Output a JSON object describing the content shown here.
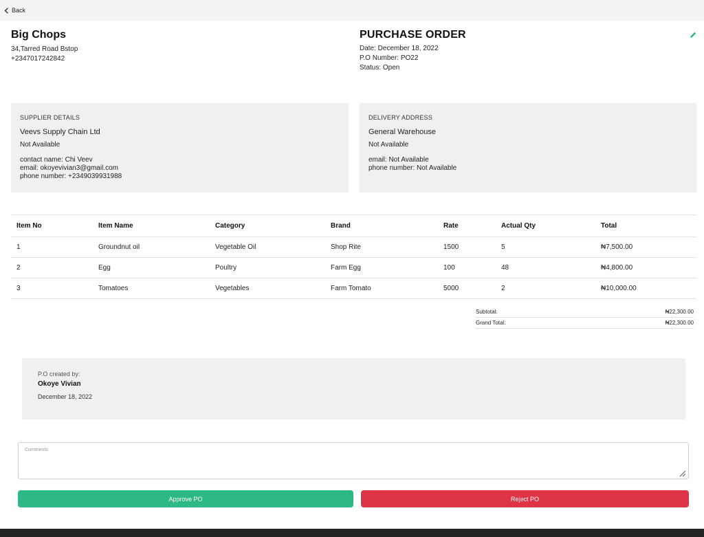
{
  "nav": {
    "back_label": "Back"
  },
  "company": {
    "name": "Big Chops",
    "address": "34,Tarred Road Bstop",
    "phone": "+2347017242842"
  },
  "po": {
    "title": "PURCHASE ORDER",
    "date": "Date: December 18, 2022",
    "number": "P.O Number: PO22",
    "status": "Status: Open"
  },
  "supplier": {
    "heading": "SUPPLIER DETAILS",
    "name": "Veevs Supply Chain Ltd",
    "address": "Not Available",
    "contact_name": "contact name: Chi Veev",
    "email": "email: okoyevivian3@gmail.com",
    "phone": "phone number: +2349039931988"
  },
  "delivery": {
    "heading": "DELIVERY ADDRESS",
    "name": "General Warehouse",
    "address": "Not Available",
    "email": "email: Not Available",
    "phone": "phone number: Not Available"
  },
  "table": {
    "headers": [
      "Item No",
      "Item Name",
      "Category",
      "Brand",
      "Rate",
      "Actual Qty",
      "Total"
    ],
    "rows": [
      [
        "1",
        "Groundnut oil",
        "Vegetable Oil",
        "Shop Rite",
        "1500",
        "5",
        "₦7,500.00"
      ],
      [
        "2",
        "Egg",
        "Poultry",
        "Farm Egg",
        "100",
        "48",
        "₦4,800.00"
      ],
      [
        "3",
        "Tomatoes",
        "Vegetables",
        "Farm Tomato",
        "5000",
        "2",
        "₦10,000.00"
      ]
    ]
  },
  "totals": {
    "subtotal_label": "Subtotal:",
    "subtotal": "₦22,300.00",
    "grand_label": "Grand Total:",
    "grand": "₦22,300.00"
  },
  "created": {
    "label": "P.O created by:",
    "name": "Okoye Vivian",
    "date": "December 18, 2022"
  },
  "comments": {
    "placeholder": "Comments"
  },
  "actions": {
    "approve": "Approve PO",
    "reject": "Reject PO"
  },
  "colors": {
    "approve": "#2db985",
    "reject": "#df3445",
    "edit_icon": "#2db985"
  },
  "icons": {
    "back": "chevron-left-icon",
    "edit": "pencil-icon",
    "resize": "resize-grip-icon"
  }
}
